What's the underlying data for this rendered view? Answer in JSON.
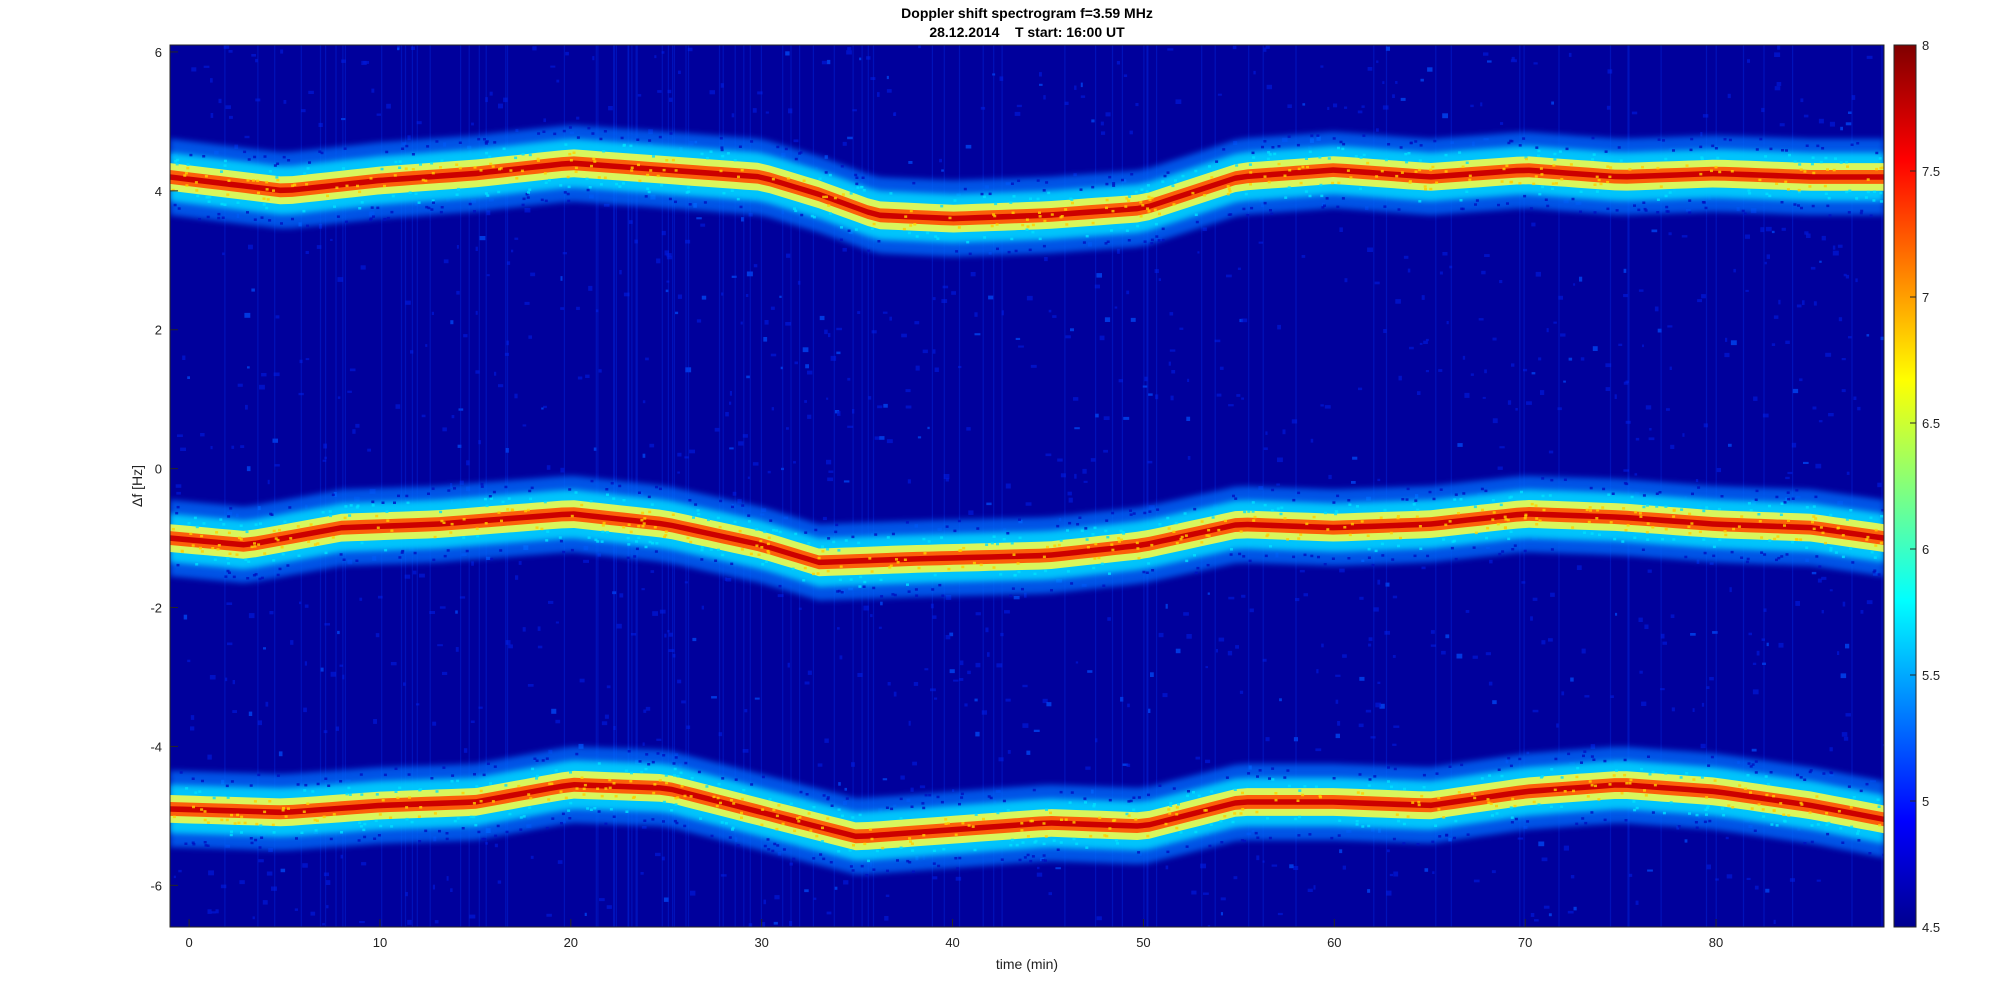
{
  "chart_data": {
    "type": "heatmap",
    "title": "Doppler shift spectrogram f=3.59 MHz",
    "subtitle": "28.12.2014    T start: 16:00 UT",
    "xlabel": "time (min)",
    "ylabel": "Δf [Hz]",
    "xlim": [
      -1,
      88.8
    ],
    "ylim": [
      -6.6,
      6.1
    ],
    "x_ticks": [
      0,
      10,
      20,
      30,
      40,
      50,
      60,
      70,
      80
    ],
    "x_tick_labels": [
      "0",
      "10",
      "20",
      "30",
      "40",
      "50",
      "60",
      "70",
      "80"
    ],
    "y_ticks": [
      6,
      4,
      2,
      0,
      -2,
      -4,
      -6
    ],
    "y_tick_labels": [
      "6",
      "4",
      "2",
      "0",
      "-2",
      "-4",
      "-6"
    ],
    "colorbar": {
      "colormap": "jet",
      "clim": [
        4.5,
        8
      ],
      "ticks": [
        8,
        7.5,
        7,
        6.5,
        6,
        5.5,
        5,
        4.5
      ],
      "tick_labels": [
        "8",
        "7.5",
        "7",
        "6.5",
        "6",
        "5.5",
        "5",
        "4.5"
      ]
    },
    "traces": [
      {
        "time_min": [
          -1,
          5,
          10,
          15,
          20,
          25,
          30,
          33,
          36,
          40,
          45,
          50,
          55,
          60,
          65,
          70,
          75,
          80,
          85,
          88.8
        ],
        "delta_f_hz": [
          4.2,
          4.0,
          4.15,
          4.25,
          4.4,
          4.3,
          4.2,
          3.95,
          3.65,
          3.6,
          3.65,
          3.75,
          4.2,
          4.3,
          4.2,
          4.3,
          4.2,
          4.25,
          4.2,
          4.2
        ]
      },
      {
        "time_min": [
          -1,
          3,
          8,
          13,
          20,
          25,
          30,
          33,
          38,
          45,
          50,
          55,
          60,
          65,
          70,
          75,
          80,
          85,
          88.8
        ],
        "delta_f_hz": [
          -1.0,
          -1.1,
          -0.85,
          -0.8,
          -0.65,
          -0.8,
          -1.1,
          -1.35,
          -1.3,
          -1.25,
          -1.1,
          -0.8,
          -0.85,
          -0.8,
          -0.65,
          -0.7,
          -0.8,
          -0.85,
          -1.0
        ]
      },
      {
        "time_min": [
          -1,
          5,
          10,
          15,
          20,
          25,
          30,
          35,
          40,
          45,
          50,
          55,
          60,
          65,
          70,
          75,
          80,
          85,
          88.8
        ],
        "delta_f_hz": [
          -4.9,
          -4.95,
          -4.85,
          -4.8,
          -4.55,
          -4.6,
          -4.95,
          -5.3,
          -5.2,
          -5.1,
          -5.15,
          -4.8,
          -4.8,
          -4.85,
          -4.65,
          -4.55,
          -4.65,
          -4.85,
          -5.05
        ]
      }
    ],
    "colors": {
      "background": "#00009c",
      "frame": "#262626"
    }
  }
}
